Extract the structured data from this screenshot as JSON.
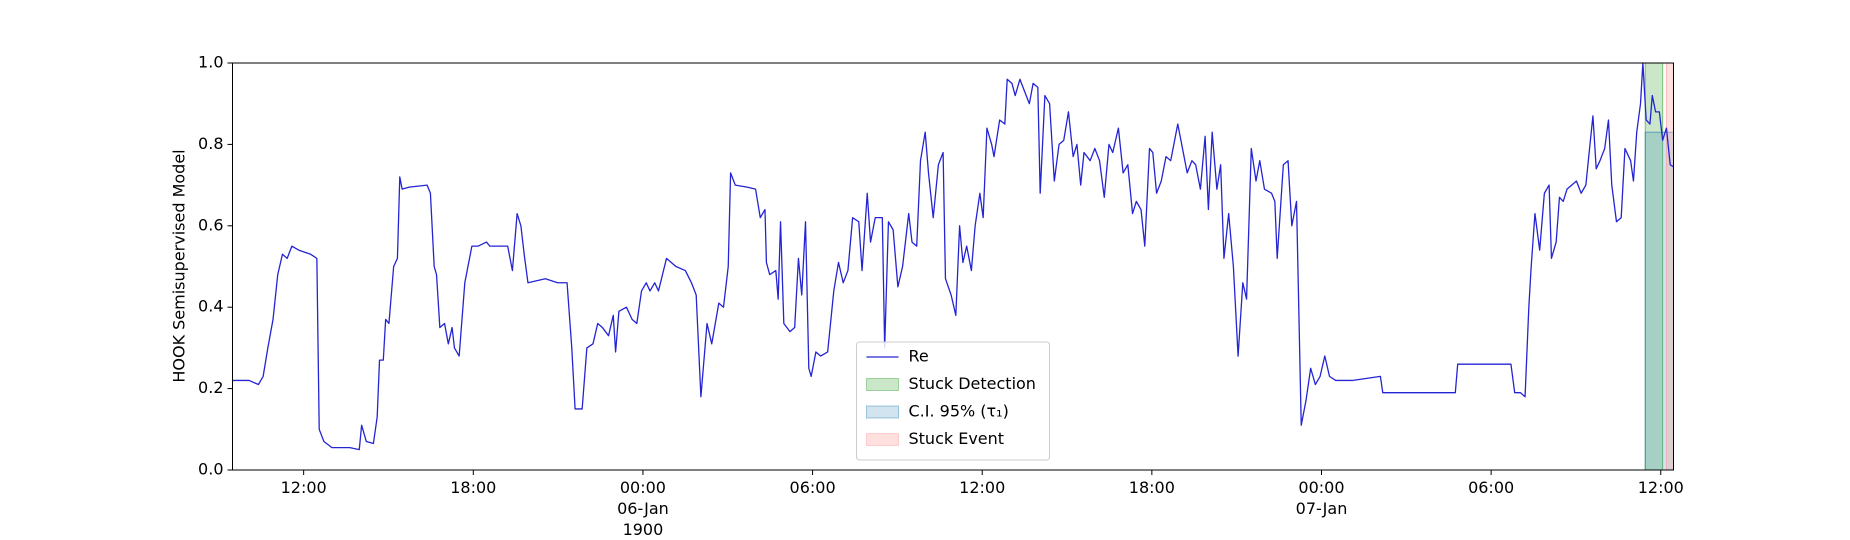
{
  "chart_data": {
    "type": "line",
    "y_label": "HOOK Semisupervised Model",
    "x": [
      "1900-01-05T09:29",
      "1900-01-05T10:04",
      "1900-01-05T10:24",
      "1900-01-05T10:34",
      "1900-01-05T10:44",
      "1900-01-05T10:55",
      "1900-01-05T11:05",
      "1900-01-05T11:15",
      "1900-01-05T11:25",
      "1900-01-05T11:35",
      "1900-01-05T11:50",
      "1900-01-05T12:15",
      "1900-01-05T12:28",
      "1900-01-05T12:33",
      "1900-01-05T12:43",
      "1900-01-05T13:00",
      "1900-01-05T13:38",
      "1900-01-05T13:58",
      "1900-01-05T14:03",
      "1900-01-05T14:13",
      "1900-01-05T14:28",
      "1900-01-05T14:36",
      "1900-01-05T14:41",
      "1900-01-05T14:49",
      "1900-01-05T14:54",
      "1900-01-05T15:01",
      "1900-01-05T15:11",
      "1900-01-05T15:19",
      "1900-01-05T15:24",
      "1900-01-05T15:29",
      "1900-01-05T15:44",
      "1900-01-05T16:22",
      "1900-01-05T16:29",
      "1900-01-05T16:37",
      "1900-01-05T16:42",
      "1900-01-05T16:49",
      "1900-01-05T16:59",
      "1900-01-05T17:07",
      "1900-01-05T17:15",
      "1900-01-05T17:20",
      "1900-01-05T17:30",
      "1900-01-05T17:42",
      "1900-01-05T17:57",
      "1900-01-05T18:10",
      "1900-01-05T18:28",
      "1900-01-05T18:35",
      "1900-01-05T18:58",
      "1900-01-05T19:13",
      "1900-01-05T19:23",
      "1900-01-05T19:33",
      "1900-01-05T19:41",
      "1900-01-05T19:48",
      "1900-01-05T19:56",
      "1900-01-05T20:33",
      "1900-01-05T20:59",
      "1900-01-05T21:19",
      "1900-01-05T21:29",
      "1900-01-05T21:36",
      "1900-01-05T21:51",
      "1900-01-05T22:01",
      "1900-01-05T22:14",
      "1900-01-05T22:24",
      "1900-01-05T22:34",
      "1900-01-05T22:47",
      "1900-01-05T22:57",
      "1900-01-05T23:02",
      "1900-01-05T23:09",
      "1900-01-05T23:25",
      "1900-01-05T23:37",
      "1900-01-05T23:47",
      "1900-01-05T23:57",
      "1900-01-06T00:07",
      "1900-01-06T00:15",
      "1900-01-06T00:25",
      "1900-01-06T00:33",
      "1900-01-06T00:50",
      "1900-01-06T01:10",
      "1900-01-06T01:30",
      "1900-01-06T01:43",
      "1900-01-06T01:53",
      "1900-01-06T02:03",
      "1900-01-06T02:16",
      "1900-01-06T02:26",
      "1900-01-06T02:41",
      "1900-01-06T02:51",
      "1900-01-06T03:01",
      "1900-01-06T03:06",
      "1900-01-06T03:16",
      "1900-01-06T03:41",
      "1900-01-06T03:59",
      "1900-01-06T04:09",
      "1900-01-06T04:19",
      "1900-01-06T04:22",
      "1900-01-06T04:29",
      "1900-01-06T04:42",
      "1900-01-06T04:47",
      "1900-01-06T04:52",
      "1900-01-06T04:59",
      "1900-01-06T05:12",
      "1900-01-06T05:22",
      "1900-01-06T05:30",
      "1900-01-06T05:37",
      "1900-01-06T05:45",
      "1900-01-06T05:52",
      "1900-01-06T05:57",
      "1900-01-06T06:07",
      "1900-01-06T06:17",
      "1900-01-06T06:32",
      "1900-01-06T06:45",
      "1900-01-06T06:55",
      "1900-01-06T07:05",
      "1900-01-06T07:15",
      "1900-01-06T07:25",
      "1900-01-06T07:38",
      "1900-01-06T07:45",
      "1900-01-06T07:56",
      "1900-01-06T08:03",
      "1900-01-06T08:13",
      "1900-01-06T08:28",
      "1900-01-06T08:33",
      "1900-01-06T08:41",
      "1900-01-06T08:51",
      "1900-01-06T09:01",
      "1900-01-06T09:11",
      "1900-01-06T09:24",
      "1900-01-06T09:31",
      "1900-01-06T09:41",
      "1900-01-06T09:49",
      "1900-01-06T09:59",
      "1900-01-06T10:06",
      "1900-01-06T10:16",
      "1900-01-06T10:27",
      "1900-01-06T10:37",
      "1900-01-06T10:42",
      "1900-01-06T10:54",
      "1900-01-06T11:04",
      "1900-01-06T11:12",
      "1900-01-06T11:19",
      "1900-01-06T11:27",
      "1900-01-06T11:37",
      "1900-01-06T11:45",
      "1900-01-06T11:55",
      "1900-01-06T12:02",
      "1900-01-06T12:10",
      "1900-01-06T12:20",
      "1900-01-06T12:25",
      "1900-01-06T12:37",
      "1900-01-06T12:48",
      "1900-01-06T12:53",
      "1900-01-06T13:03",
      "1900-01-06T13:10",
      "1900-01-06T13:20",
      "1900-01-06T13:30",
      "1900-01-06T13:40",
      "1900-01-06T13:48",
      "1900-01-06T13:58",
      "1900-01-06T14:03",
      "1900-01-06T14:13",
      "1900-01-06T14:23",
      "1900-01-06T14:33",
      "1900-01-06T14:43",
      "1900-01-06T14:53",
      "1900-01-06T15:03",
      "1900-01-06T15:13",
      "1900-01-06T15:21",
      "1900-01-06T15:29",
      "1900-01-06T15:36",
      "1900-01-06T15:49",
      "1900-01-06T15:59",
      "1900-01-06T16:09",
      "1900-01-06T16:19",
      "1900-01-06T16:29",
      "1900-01-06T16:37",
      "1900-01-06T16:49",
      "1900-01-06T16:59",
      "1900-01-06T17:09",
      "1900-01-06T17:19",
      "1900-01-06T17:27",
      "1900-01-06T17:37",
      "1900-01-06T17:45",
      "1900-01-06T17:55",
      "1900-01-06T18:02",
      "1900-01-06T18:10",
      "1900-01-06T18:20",
      "1900-01-06T18:30",
      "1900-01-06T18:40",
      "1900-01-06T18:55",
      "1900-01-06T19:05",
      "1900-01-06T19:15",
      "1900-01-06T19:25",
      "1900-01-06T19:33",
      "1900-01-06T19:43",
      "1900-01-06T19:53",
      "1900-01-06T20:00",
      "1900-01-06T20:08",
      "1900-01-06T20:18",
      "1900-01-06T20:26",
      "1900-01-06T20:33",
      "1900-01-06T20:43",
      "1900-01-06T20:53",
      "1900-01-06T21:03",
      "1900-01-06T21:13",
      "1900-01-06T21:21",
      "1900-01-06T21:31",
      "1900-01-06T21:41",
      "1900-01-06T21:49",
      "1900-01-06T21:59",
      "1900-01-06T22:14",
      "1900-01-06T22:21",
      "1900-01-06T22:26",
      "1900-01-06T22:39",
      "1900-01-06T22:49",
      "1900-01-06T22:57",
      "1900-01-06T23:07",
      "1900-01-06T23:17",
      "1900-01-06T23:27",
      "1900-01-06T23:37",
      "1900-01-06T23:47",
      "1900-01-06T23:57",
      "1900-01-07T00:07",
      "1900-01-07T00:17",
      "1900-01-07T00:30",
      "1900-01-07T01:05",
      "1900-01-07T02:05",
      "1900-01-07T02:10",
      "1900-01-07T02:58",
      "1900-01-07T04:44",
      "1900-01-07T04:49",
      "1900-01-07T06:42",
      "1900-01-07T06:50",
      "1900-01-07T07:02",
      "1900-01-07T07:12",
      "1900-01-07T07:20",
      "1900-01-07T07:25",
      "1900-01-07T07:33",
      "1900-01-07T07:43",
      "1900-01-07T07:53",
      "1900-01-07T08:03",
      "1900-01-07T08:08",
      "1900-01-07T08:18",
      "1900-01-07T08:25",
      "1900-01-07T08:33",
      "1900-01-07T08:41",
      "1900-01-07T08:51",
      "1900-01-07T09:01",
      "1900-01-07T09:11",
      "1900-01-07T09:21",
      "1900-01-07T09:28",
      "1900-01-07T09:36",
      "1900-01-07T09:43",
      "1900-01-07T09:51",
      "1900-01-07T10:01",
      "1900-01-07T10:09",
      "1900-01-07T10:16",
      "1900-01-07T10:26",
      "1900-01-07T10:36",
      "1900-01-07T10:44",
      "1900-01-07T10:56",
      "1900-01-07T11:02",
      "1900-01-07T11:09",
      "1900-01-07T11:17",
      "1900-01-07T11:22",
      "1900-01-07T11:29",
      "1900-01-07T11:37",
      "1900-01-07T11:42",
      "1900-01-07T11:49",
      "1900-01-07T11:57",
      "1900-01-07T12:04",
      "1900-01-07T12:12",
      "1900-01-07T12:20",
      "1900-01-07T12:27"
    ],
    "series": [
      {
        "name": "Re",
        "color": "#2424d4",
        "values": [
          0.22,
          0.22,
          0.21,
          0.23,
          0.3,
          0.37,
          0.48,
          0.53,
          0.52,
          0.55,
          0.54,
          0.53,
          0.52,
          0.1,
          0.07,
          0.055,
          0.055,
          0.05,
          0.11,
          0.07,
          0.065,
          0.13,
          0.27,
          0.27,
          0.37,
          0.36,
          0.5,
          0.52,
          0.72,
          0.69,
          0.695,
          0.7,
          0.68,
          0.5,
          0.48,
          0.35,
          0.36,
          0.31,
          0.35,
          0.3,
          0.28,
          0.46,
          0.55,
          0.55,
          0.56,
          0.55,
          0.55,
          0.55,
          0.49,
          0.63,
          0.6,
          0.53,
          0.46,
          0.47,
          0.46,
          0.46,
          0.3,
          0.15,
          0.15,
          0.3,
          0.31,
          0.36,
          0.35,
          0.33,
          0.38,
          0.29,
          0.39,
          0.4,
          0.37,
          0.36,
          0.44,
          0.46,
          0.44,
          0.46,
          0.44,
          0.52,
          0.5,
          0.49,
          0.46,
          0.43,
          0.18,
          0.36,
          0.31,
          0.41,
          0.4,
          0.5,
          0.73,
          0.7,
          0.695,
          0.69,
          0.62,
          0.64,
          0.51,
          0.48,
          0.49,
          0.42,
          0.61,
          0.36,
          0.34,
          0.35,
          0.52,
          0.43,
          0.61,
          0.25,
          0.23,
          0.29,
          0.28,
          0.29,
          0.44,
          0.51,
          0.46,
          0.49,
          0.62,
          0.61,
          0.49,
          0.68,
          0.56,
          0.62,
          0.62,
          0.3,
          0.61,
          0.59,
          0.45,
          0.5,
          0.63,
          0.56,
          0.55,
          0.76,
          0.83,
          0.73,
          0.62,
          0.75,
          0.78,
          0.47,
          0.43,
          0.38,
          0.6,
          0.51,
          0.55,
          0.49,
          0.6,
          0.68,
          0.62,
          0.84,
          0.8,
          0.77,
          0.86,
          0.85,
          0.96,
          0.95,
          0.92,
          0.96,
          0.93,
          0.9,
          0.95,
          0.94,
          0.68,
          0.92,
          0.9,
          0.71,
          0.8,
          0.81,
          0.88,
          0.77,
          0.8,
          0.7,
          0.78,
          0.76,
          0.79,
          0.76,
          0.67,
          0.8,
          0.78,
          0.84,
          0.73,
          0.75,
          0.63,
          0.66,
          0.64,
          0.55,
          0.79,
          0.78,
          0.68,
          0.71,
          0.77,
          0.76,
          0.85,
          0.79,
          0.73,
          0.76,
          0.75,
          0.69,
          0.82,
          0.64,
          0.83,
          0.69,
          0.75,
          0.52,
          0.63,
          0.5,
          0.28,
          0.46,
          0.42,
          0.79,
          0.71,
          0.76,
          0.69,
          0.68,
          0.66,
          0.52,
          0.75,
          0.76,
          0.6,
          0.66,
          0.11,
          0.17,
          0.25,
          0.21,
          0.23,
          0.28,
          0.23,
          0.22,
          0.22,
          0.23,
          0.19,
          0.19,
          0.19,
          0.26,
          0.26,
          0.19,
          0.19,
          0.18,
          0.4,
          0.5,
          0.63,
          0.54,
          0.68,
          0.7,
          0.52,
          0.56,
          0.67,
          0.66,
          0.69,
          0.7,
          0.71,
          0.68,
          0.7,
          0.78,
          0.87,
          0.74,
          0.76,
          0.79,
          0.86,
          0.7,
          0.61,
          0.62,
          0.79,
          0.76,
          0.71,
          0.83,
          0.9,
          1.0,
          0.86,
          0.85,
          0.92,
          0.88,
          0.88,
          0.81,
          0.84,
          0.75,
          0.745
        ]
      }
    ],
    "spans": [
      {
        "name": "Stuck Detection",
        "color": "#2ca02c",
        "opacity": 0.25,
        "x": [
          "1900-01-07T11:27",
          "1900-01-07T12:04"
        ],
        "y": [
          0,
          1
        ]
      },
      {
        "name": "C.I. 95% (τ₁)",
        "color": "#1f77b4",
        "opacity": 0.2,
        "x": [
          "1900-01-07T11:27",
          "1900-01-07T12:27"
        ],
        "y": [
          0,
          0.83
        ]
      },
      {
        "name": "Stuck Event",
        "color": "#ff9896",
        "opacity": 0.3,
        "x": [
          "1900-01-07T12:12",
          "1900-01-07T12:27"
        ],
        "y": [
          0,
          1
        ]
      }
    ],
    "xlim": [
      "1900-01-05T09:29",
      "1900-01-07T12:27"
    ],
    "xticks": [
      {
        "value": "1900-01-05T12:00",
        "label": "12:00"
      },
      {
        "value": "1900-01-05T18:00",
        "label": "18:00"
      },
      {
        "value": "1900-01-06T00:00",
        "label": "00:00\n06-Jan\n1900"
      },
      {
        "value": "1900-01-06T06:00",
        "label": "06:00"
      },
      {
        "value": "1900-01-06T12:00",
        "label": "12:00"
      },
      {
        "value": "1900-01-06T18:00",
        "label": "18:00"
      },
      {
        "value": "1900-01-07T00:00",
        "label": "00:00\n07-Jan"
      },
      {
        "value": "1900-01-07T06:00",
        "label": "06:00"
      },
      {
        "value": "1900-01-07T12:00",
        "label": "12:00"
      }
    ],
    "ylim": [
      0,
      1
    ],
    "yticks": [
      {
        "value": 0,
        "label": "0.0"
      },
      0.2,
      0.4,
      0.6,
      0.8,
      {
        "value": 1,
        "label": "1.0"
      }
    ],
    "legend": "lower center"
  }
}
